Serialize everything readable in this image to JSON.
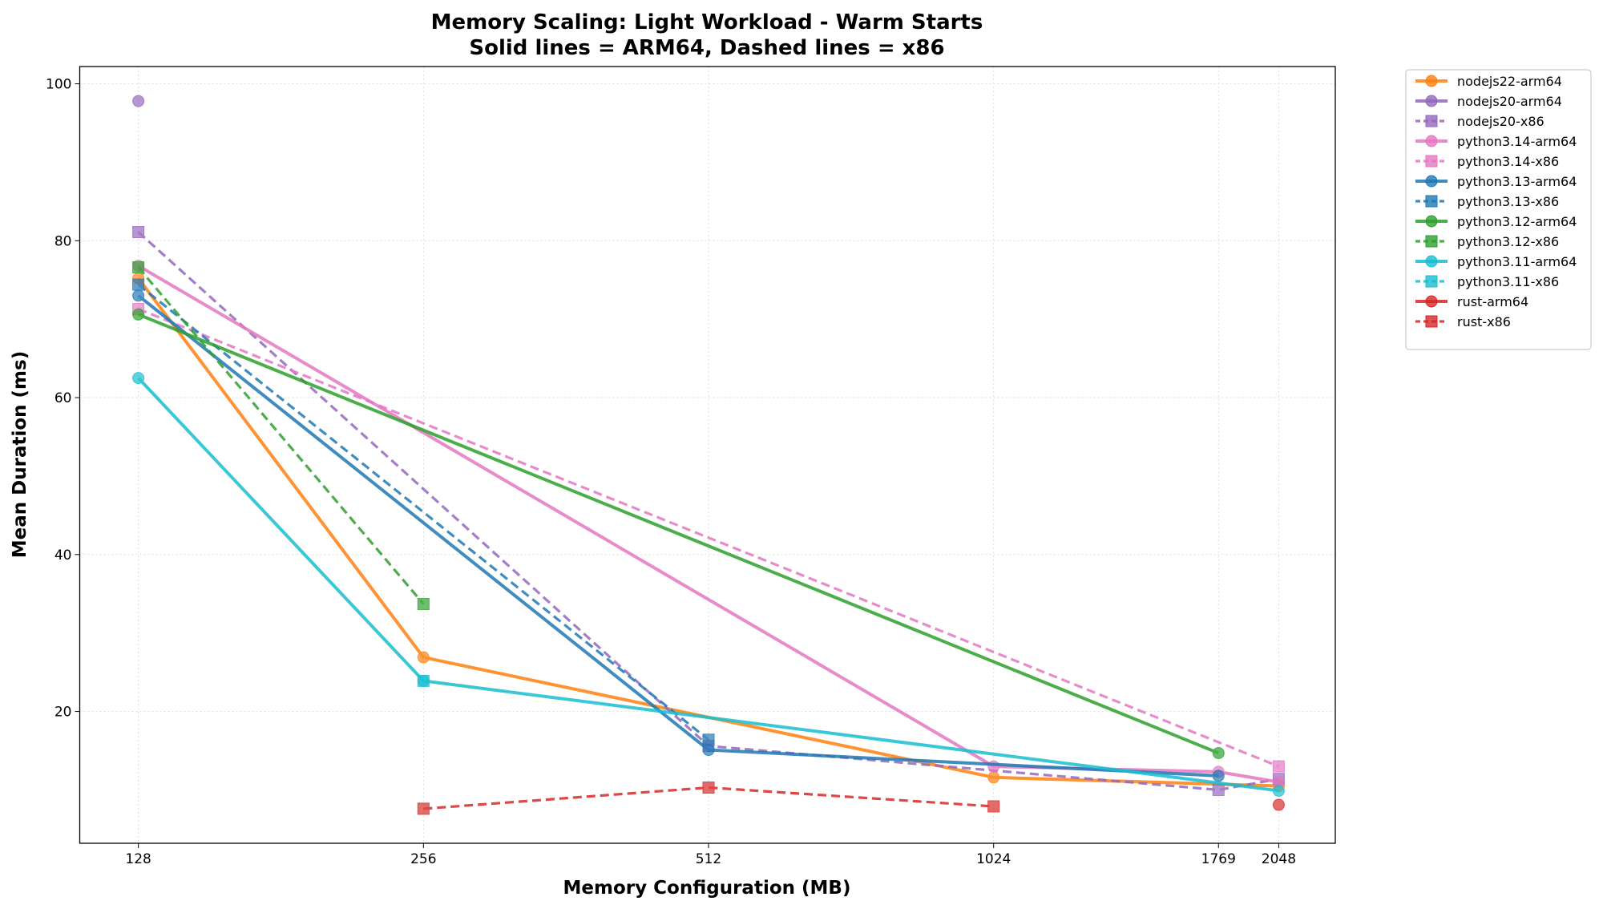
{
  "chart_data": {
    "type": "line",
    "title": "Memory Scaling: Light Workload - Warm Starts",
    "subtitle": "Solid lines = ARM64, Dashed lines = x86",
    "xlabel": "Memory Configuration (MB)",
    "ylabel": "Mean Duration (ms)",
    "xscale": "log2",
    "xticks": [
      128,
      256,
      512,
      1024,
      1769,
      2048
    ],
    "xlim": [
      111,
      2350
    ],
    "yticks": [
      20,
      40,
      60,
      80,
      100
    ],
    "ylim": [
      3.2,
      102.2
    ],
    "grid": true,
    "legend_position": "outside-top-right",
    "series": [
      {
        "name": "nodejs22-arm64",
        "color": "#ff7f0e",
        "dashed": false,
        "marker": "circle",
        "x": [
          128,
          256,
          1024,
          2048
        ],
        "y": [
          75.2,
          26.9,
          11.6,
          10.5
        ]
      },
      {
        "name": "nodejs20-arm64",
        "color": "#9467bd",
        "dashed": false,
        "marker": "circle",
        "x": [
          128
        ],
        "y": [
          97.8
        ]
      },
      {
        "name": "nodejs20-x86",
        "color": "#9467bd",
        "dashed": true,
        "marker": "square",
        "x": [
          128,
          512,
          1769,
          2048
        ],
        "y": [
          81.1,
          15.6,
          10.0,
          11.4
        ]
      },
      {
        "name": "python3.14-arm64",
        "color": "#e377c2",
        "dashed": false,
        "marker": "circle",
        "x": [
          128,
          1024,
          1769,
          2048
        ],
        "y": [
          76.8,
          13.0,
          12.3,
          11.0
        ]
      },
      {
        "name": "python3.14-x86",
        "color": "#e377c2",
        "dashed": true,
        "marker": "square",
        "x": [
          128,
          2048
        ],
        "y": [
          71.3,
          13.0
        ]
      },
      {
        "name": "python3.13-arm64",
        "color": "#1f77b4",
        "dashed": false,
        "marker": "circle",
        "x": [
          128,
          512,
          1769
        ],
        "y": [
          73.0,
          15.1,
          11.8
        ]
      },
      {
        "name": "python3.13-x86",
        "color": "#1f77b4",
        "dashed": true,
        "marker": "square",
        "x": [
          128,
          512
        ],
        "y": [
          74.4,
          16.4
        ]
      },
      {
        "name": "python3.12-arm64",
        "color": "#2ca02c",
        "dashed": false,
        "marker": "circle",
        "x": [
          128,
          1769
        ],
        "y": [
          70.6,
          14.7
        ]
      },
      {
        "name": "python3.12-x86",
        "color": "#2ca02c",
        "dashed": true,
        "marker": "square",
        "x": [
          128,
          256
        ],
        "y": [
          76.6,
          33.7
        ]
      },
      {
        "name": "python3.11-arm64",
        "color": "#17becf",
        "dashed": false,
        "marker": "circle",
        "x": [
          128,
          256,
          2048
        ],
        "y": [
          62.5,
          23.9,
          9.9
        ]
      },
      {
        "name": "python3.11-x86",
        "color": "#17becf",
        "dashed": true,
        "marker": "square",
        "x": [
          256
        ],
        "y": [
          23.9
        ]
      },
      {
        "name": "rust-arm64",
        "color": "#d62728",
        "dashed": false,
        "marker": "circle",
        "x": [
          2048
        ],
        "y": [
          8.1
        ]
      },
      {
        "name": "rust-x86",
        "color": "#d62728",
        "dashed": true,
        "marker": "square",
        "x": [
          256,
          512,
          1024
        ],
        "y": [
          7.6,
          10.3,
          7.9
        ]
      }
    ]
  }
}
